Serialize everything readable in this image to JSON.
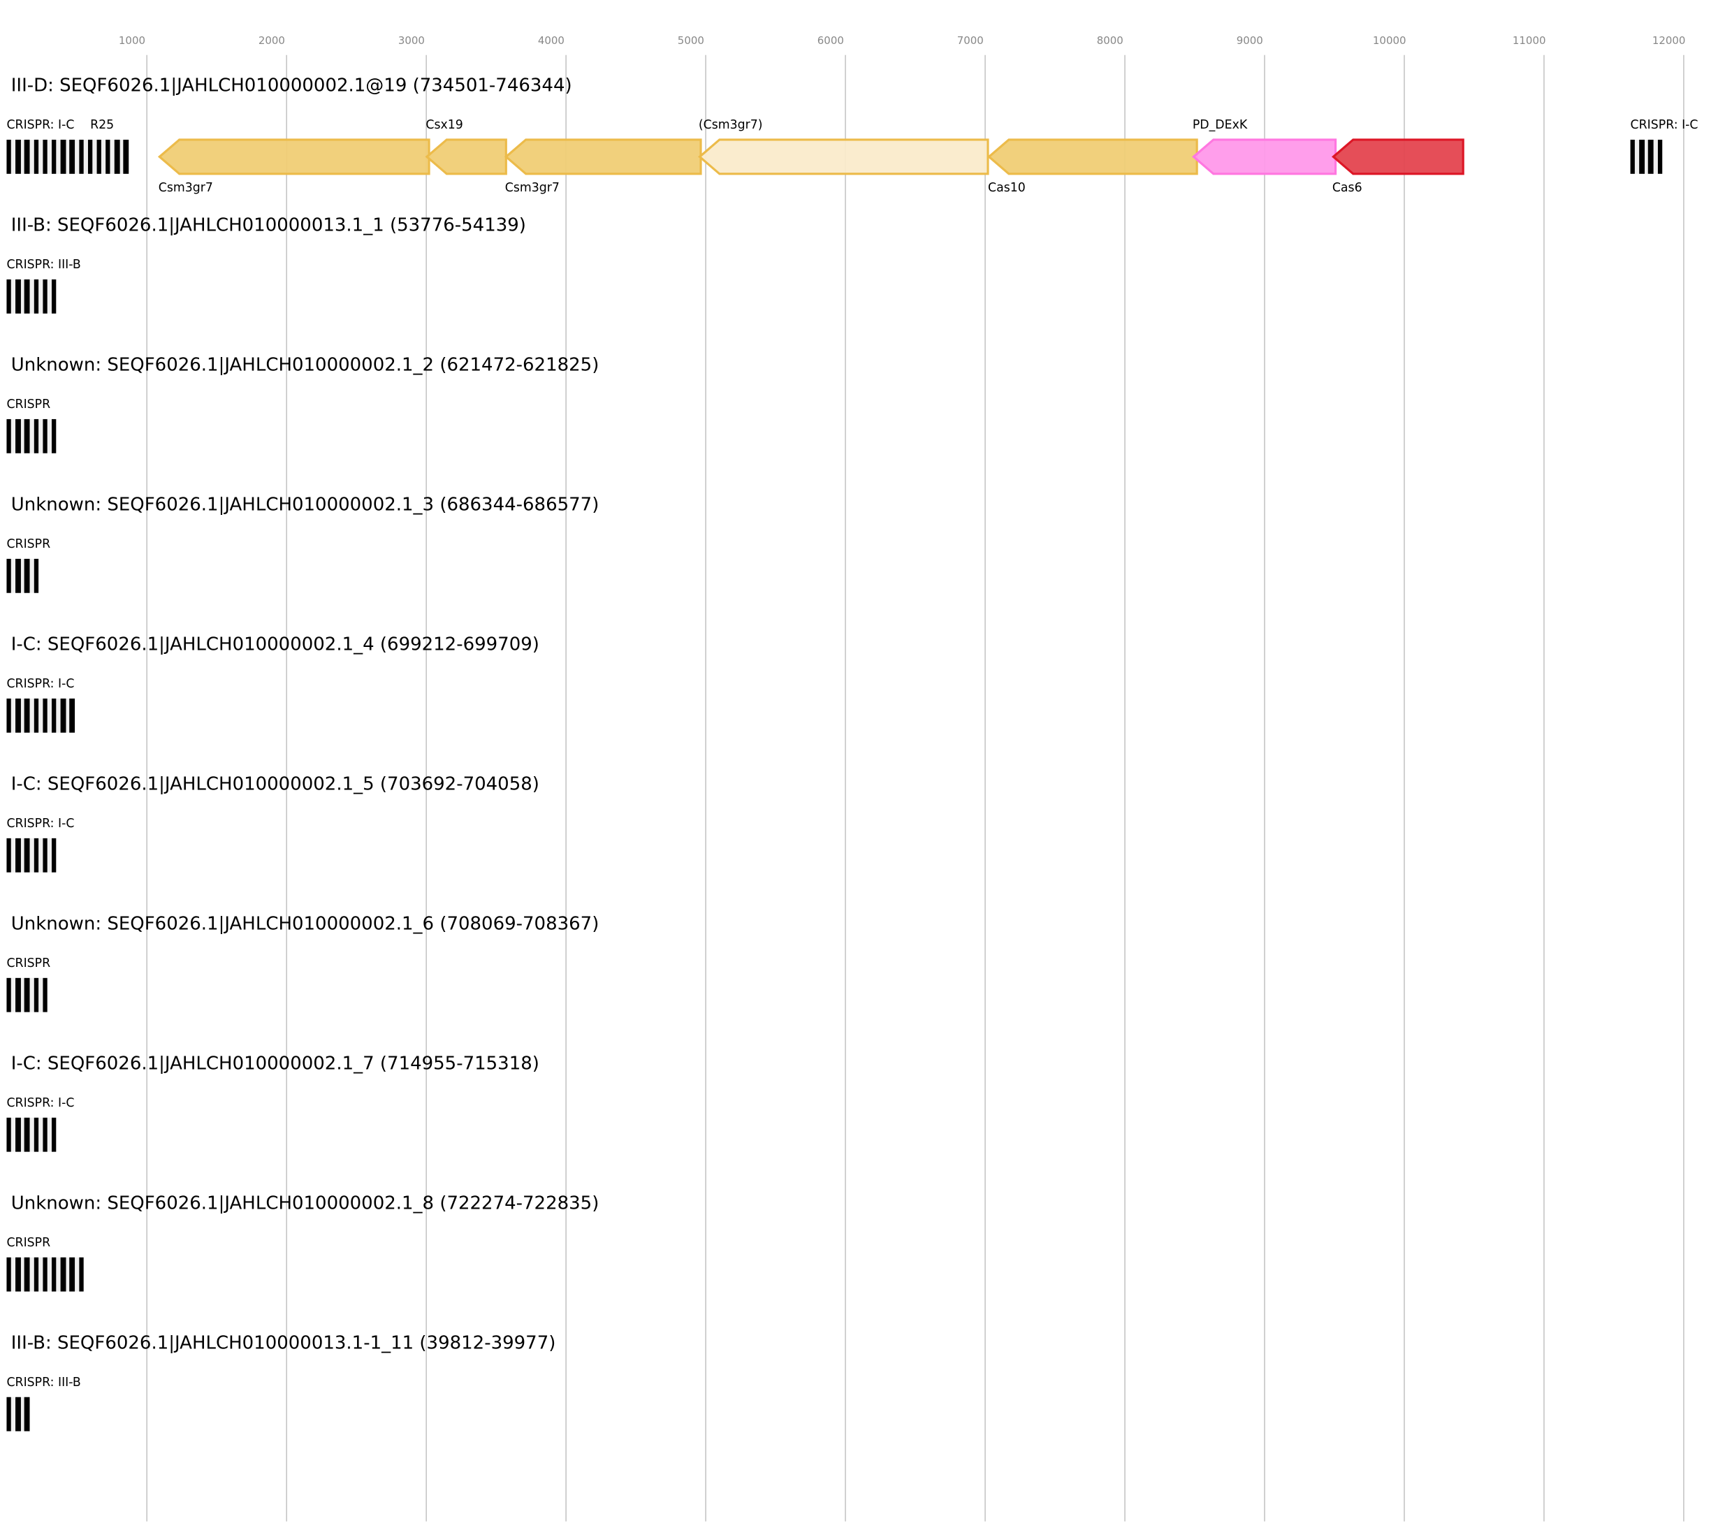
{
  "axis": {
    "ticks": [
      1000,
      2000,
      3000,
      4000,
      5000,
      6000,
      7000,
      8000,
      9000,
      10000,
      11000,
      12000
    ]
  },
  "colors": {
    "gold_fill": "#f0cd75",
    "gold_stroke": "#ecbb4a",
    "light_fill": "#faebcb",
    "pink_fill": "#ff99ea",
    "pink_stroke": "#ff77e0",
    "red_fill": "#e4444f",
    "red_stroke": "#dd1626"
  },
  "rows": [
    {
      "title": "III-D: SEQF6026.1|JAHLCH010000002.1@19 (734501-746344)",
      "crispr": [
        {
          "label": "CRISPR: I-C",
          "overlay": "R25",
          "bars": 14,
          "pos": "left"
        },
        {
          "label": "CRISPR: I-C",
          "bars": 4,
          "pos": "right"
        }
      ],
      "genes": [
        {
          "name": "Csm3gr7",
          "label_pos": "below",
          "style": "gold"
        },
        {
          "name": "Csx19",
          "label_pos": "above",
          "style": "gold"
        },
        {
          "name": "Csm3gr7",
          "label_pos": "below",
          "style": "gold"
        },
        {
          "name": "(Csm3gr7)",
          "label_pos": "above",
          "style": "light"
        },
        {
          "name": "Cas10",
          "label_pos": "below",
          "style": "gold"
        },
        {
          "name": "PD_DExK",
          "label_pos": "above",
          "style": "pink"
        },
        {
          "name": "Cas6",
          "label_pos": "below",
          "style": "red"
        }
      ]
    },
    {
      "title": "III-B: SEQF6026.1|JAHLCH010000013.1_1 (53776-54139)",
      "crispr": [
        {
          "label": "CRISPR: III-B",
          "bars": 6
        }
      ]
    },
    {
      "title": "Unknown: SEQF6026.1|JAHLCH010000002.1_2 (621472-621825)",
      "crispr": [
        {
          "label": "CRISPR",
          "bars": 6
        }
      ]
    },
    {
      "title": "Unknown: SEQF6026.1|JAHLCH010000002.1_3 (686344-686577)",
      "crispr": [
        {
          "label": "CRISPR",
          "bars": 4
        }
      ]
    },
    {
      "title": "I-C: SEQF6026.1|JAHLCH010000002.1_4 (699212-699709)",
      "crispr": [
        {
          "label": "CRISPR: I-C",
          "bars": 8
        }
      ]
    },
    {
      "title": "I-C: SEQF6026.1|JAHLCH010000002.1_5 (703692-704058)",
      "crispr": [
        {
          "label": "CRISPR: I-C",
          "bars": 6
        }
      ]
    },
    {
      "title": "Unknown: SEQF6026.1|JAHLCH010000002.1_6 (708069-708367)",
      "crispr": [
        {
          "label": "CRISPR",
          "bars": 5
        }
      ]
    },
    {
      "title": "I-C: SEQF6026.1|JAHLCH010000002.1_7 (714955-715318)",
      "crispr": [
        {
          "label": "CRISPR: I-C",
          "bars": 6
        }
      ]
    },
    {
      "title": "Unknown: SEQF6026.1|JAHLCH010000002.1_8 (722274-722835)",
      "crispr": [
        {
          "label": "CRISPR",
          "bars": 9
        }
      ]
    },
    {
      "title": "III-B: SEQF6026.1|JAHLCH010000013.1-1_11 (39812-39977)",
      "crispr": [
        {
          "label": "CRISPR: III-B",
          "bars": 3
        }
      ]
    }
  ]
}
